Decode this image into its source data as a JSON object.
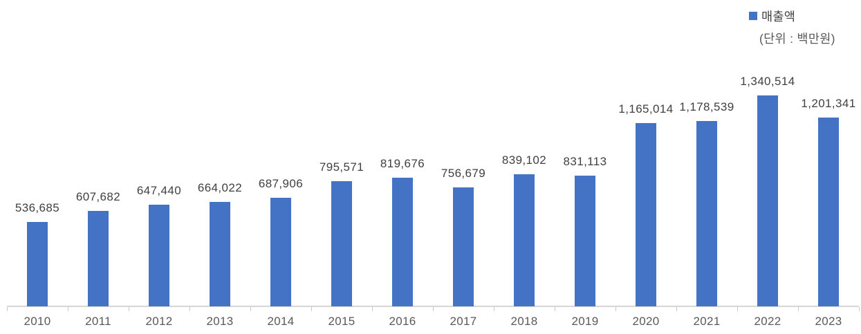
{
  "legend": {
    "label": "매출액",
    "unit_note": "(단위 : 백만원)",
    "marker_color": "#4472C4"
  },
  "chart_data": {
    "type": "bar",
    "title": "",
    "xlabel": "",
    "ylabel": "",
    "categories": [
      "2010",
      "2011",
      "2012",
      "2013",
      "2014",
      "2015",
      "2016",
      "2017",
      "2018",
      "2019",
      "2020",
      "2021",
      "2022",
      "2023"
    ],
    "series": [
      {
        "name": "매출액",
        "color": "#4472C4",
        "values": [
          536685,
          607682,
          647440,
          664022,
          687906,
          795571,
          819676,
          756679,
          839102,
          831113,
          1165014,
          1178539,
          1340514,
          1201341
        ]
      }
    ],
    "value_labels": [
      "536,685",
      "607,682",
      "647,440",
      "664,022",
      "687,906",
      "795,571",
      "819,676",
      "756,679",
      "839,102",
      "831,113",
      "1,165,014",
      "1,178,539",
      "1,340,514",
      "1,201,341"
    ],
    "data_labels_visible": true,
    "grid": false,
    "y_axis_visible": false,
    "legend_position": "top-right"
  },
  "colors": {
    "bar": "#4472C4",
    "value_label": "#404040",
    "axis_label": "#595959",
    "axis_line": "#D6D6D6",
    "background": "#FFFFFF"
  }
}
